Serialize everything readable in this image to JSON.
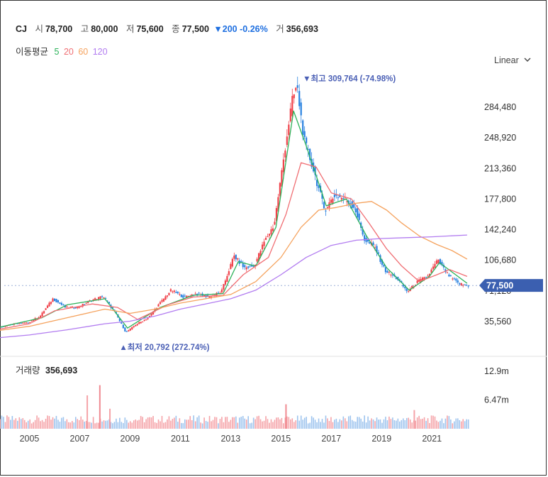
{
  "header": {
    "symbol": "CJ",
    "open_label": "시",
    "open": "78,700",
    "high_label": "고",
    "high": "80,000",
    "low_label": "저",
    "low": "75,600",
    "close_label": "종",
    "close": "77,500",
    "change": "▼200 -0.26%",
    "volume_label": "거",
    "volume": "356,693"
  },
  "ma_legend": {
    "label": "이동평균",
    "items": [
      {
        "period": "5",
        "color": "#2db35b"
      },
      {
        "period": "20",
        "color": "#f06e73"
      },
      {
        "period": "60",
        "color": "#f5a25d"
      },
      {
        "period": "120",
        "color": "#b27cf0"
      }
    ]
  },
  "scale_selector": {
    "label": "Linear",
    "icon": "chevron-down-icon"
  },
  "volume_panel": {
    "label": "거래량",
    "value": "356,693"
  },
  "chart_data": [
    {
      "type": "candlestick",
      "x_ticks": [
        "2005",
        "2007",
        "2009",
        "2011",
        "2013",
        "2015",
        "2017",
        "2019",
        "2021"
      ],
      "y_ticks": [
        "35,560",
        "71,120",
        "106,680",
        "142,240",
        "177,800",
        "213,360",
        "248,920",
        "284,480"
      ],
      "ylim": [
        10000,
        330000
      ],
      "up_color": "#f0424a",
      "down_color": "#2a82e0",
      "current_price": {
        "label": "77,500",
        "value": 77500
      },
      "annotations": [
        {
          "text": "▼최고 309,764 (-74.98%)",
          "x": 2015.7,
          "y": 309764
        },
        {
          "text": "▲최저 20,792 (272.74%)",
          "x": 2008.8,
          "y": 20792
        }
      ],
      "price_path": [
        [
          2003.5,
          27000
        ],
        [
          2004.0,
          30000
        ],
        [
          2004.5,
          33000
        ],
        [
          2005.0,
          34000
        ],
        [
          2005.5,
          42000
        ],
        [
          2006.0,
          62000
        ],
        [
          2006.5,
          52000
        ],
        [
          2007.0,
          52000
        ],
        [
          2007.5,
          60000
        ],
        [
          2008.0,
          65000
        ],
        [
          2008.5,
          45000
        ],
        [
          2008.9,
          23000
        ],
        [
          2009.3,
          32000
        ],
        [
          2009.8,
          40000
        ],
        [
          2010.2,
          55000
        ],
        [
          2010.7,
          72000
        ],
        [
          2011.2,
          64000
        ],
        [
          2011.7,
          68000
        ],
        [
          2012.2,
          64000
        ],
        [
          2012.7,
          70000
        ],
        [
          2013.2,
          112000
        ],
        [
          2013.6,
          98000
        ],
        [
          2014.0,
          100000
        ],
        [
          2014.4,
          128000
        ],
        [
          2014.8,
          148000
        ],
        [
          2015.2,
          230000
        ],
        [
          2015.5,
          290000
        ],
        [
          2015.7,
          309764
        ],
        [
          2016.0,
          245000
        ],
        [
          2016.4,
          208000
        ],
        [
          2016.8,
          165000
        ],
        [
          2017.2,
          182000
        ],
        [
          2017.6,
          178000
        ],
        [
          2018.0,
          168000
        ],
        [
          2018.4,
          130000
        ],
        [
          2018.8,
          122000
        ],
        [
          2019.2,
          95000
        ],
        [
          2019.7,
          85000
        ],
        [
          2020.1,
          70000
        ],
        [
          2020.5,
          82000
        ],
        [
          2020.9,
          88000
        ],
        [
          2021.3,
          107000
        ],
        [
          2021.7,
          90000
        ],
        [
          2022.1,
          80000
        ],
        [
          2022.4,
          77500
        ]
      ],
      "ma_lines": [
        {
          "period": "5",
          "color": "#2db35b",
          "points": [
            [
              2003.5,
              27000
            ],
            [
              2005.5,
              40000
            ],
            [
              2006.5,
              55000
            ],
            [
              2008.0,
              62000
            ],
            [
              2008.9,
              28000
            ],
            [
              2010.2,
              52000
            ],
            [
              2011.5,
              66000
            ],
            [
              2012.7,
              68000
            ],
            [
              2013.3,
              105000
            ],
            [
              2014.0,
              100000
            ],
            [
              2014.8,
              145000
            ],
            [
              2015.5,
              280000
            ],
            [
              2016.0,
              240000
            ],
            [
              2016.8,
              170000
            ],
            [
              2017.6,
              178000
            ],
            [
              2018.4,
              135000
            ],
            [
              2019.2,
              98000
            ],
            [
              2020.1,
              72000
            ],
            [
              2020.9,
              88000
            ],
            [
              2021.3,
              104000
            ],
            [
              2022.4,
              80000
            ]
          ]
        },
        {
          "period": "20",
          "color": "#f06e73",
          "points": [
            [
              2003.5,
              25000
            ],
            [
              2005.0,
              33000
            ],
            [
              2006.0,
              48000
            ],
            [
              2007.5,
              56000
            ],
            [
              2008.5,
              52000
            ],
            [
              2009.3,
              38000
            ],
            [
              2010.5,
              55000
            ],
            [
              2011.5,
              64000
            ],
            [
              2012.7,
              66000
            ],
            [
              2013.5,
              90000
            ],
            [
              2014.5,
              110000
            ],
            [
              2015.2,
              160000
            ],
            [
              2015.8,
              220000
            ],
            [
              2016.4,
              215000
            ],
            [
              2017.0,
              185000
            ],
            [
              2017.8,
              178000
            ],
            [
              2018.5,
              150000
            ],
            [
              2019.2,
              120000
            ],
            [
              2019.8,
              100000
            ],
            [
              2020.5,
              82000
            ],
            [
              2021.2,
              90000
            ],
            [
              2021.7,
              96000
            ],
            [
              2022.4,
              88000
            ]
          ]
        },
        {
          "period": "60",
          "color": "#f5a25d",
          "points": [
            [
              2003.5,
              24000
            ],
            [
              2005.0,
              30000
            ],
            [
              2006.5,
              40000
            ],
            [
              2008.0,
              50000
            ],
            [
              2009.0,
              45000
            ],
            [
              2010.0,
              50000
            ],
            [
              2011.0,
              57000
            ],
            [
              2012.0,
              62000
            ],
            [
              2013.0,
              67000
            ],
            [
              2014.0,
              82000
            ],
            [
              2015.0,
              110000
            ],
            [
              2015.8,
              145000
            ],
            [
              2016.5,
              165000
            ],
            [
              2017.2,
              168000
            ],
            [
              2018.0,
              173000
            ],
            [
              2018.6,
              175000
            ],
            [
              2019.2,
              165000
            ],
            [
              2019.8,
              150000
            ],
            [
              2020.5,
              135000
            ],
            [
              2021.2,
              125000
            ],
            [
              2021.8,
              118000
            ],
            [
              2022.4,
              108000
            ]
          ]
        },
        {
          "period": "120",
          "color": "#b27cf0",
          "points": [
            [
              2003.5,
              16000
            ],
            [
              2005.0,
              20000
            ],
            [
              2006.5,
              26000
            ],
            [
              2008.0,
              33000
            ],
            [
              2009.0,
              36000
            ],
            [
              2010.0,
              42000
            ],
            [
              2011.0,
              50000
            ],
            [
              2012.0,
              56000
            ],
            [
              2013.0,
              62000
            ],
            [
              2014.0,
              72000
            ],
            [
              2015.0,
              90000
            ],
            [
              2016.0,
              110000
            ],
            [
              2017.0,
              124000
            ],
            [
              2018.0,
              130000
            ],
            [
              2019.0,
              132000
            ],
            [
              2020.0,
              133000
            ],
            [
              2021.0,
              134000
            ],
            [
              2022.4,
              136000
            ]
          ]
        }
      ]
    },
    {
      "type": "bar",
      "title": "거래량",
      "y_ticks": [
        "6.47m",
        "12.9m"
      ],
      "ylim": [
        0,
        15000000
      ],
      "peak_volumes": [
        {
          "x": 2007.3,
          "value": 7500000
        },
        {
          "x": 2007.8,
          "value": 9800000
        },
        {
          "x": 2008.2,
          "value": 4500000
        },
        {
          "x": 2015.2,
          "value": 5500000
        },
        {
          "x": 2020.3,
          "value": 4200000
        }
      ]
    }
  ]
}
